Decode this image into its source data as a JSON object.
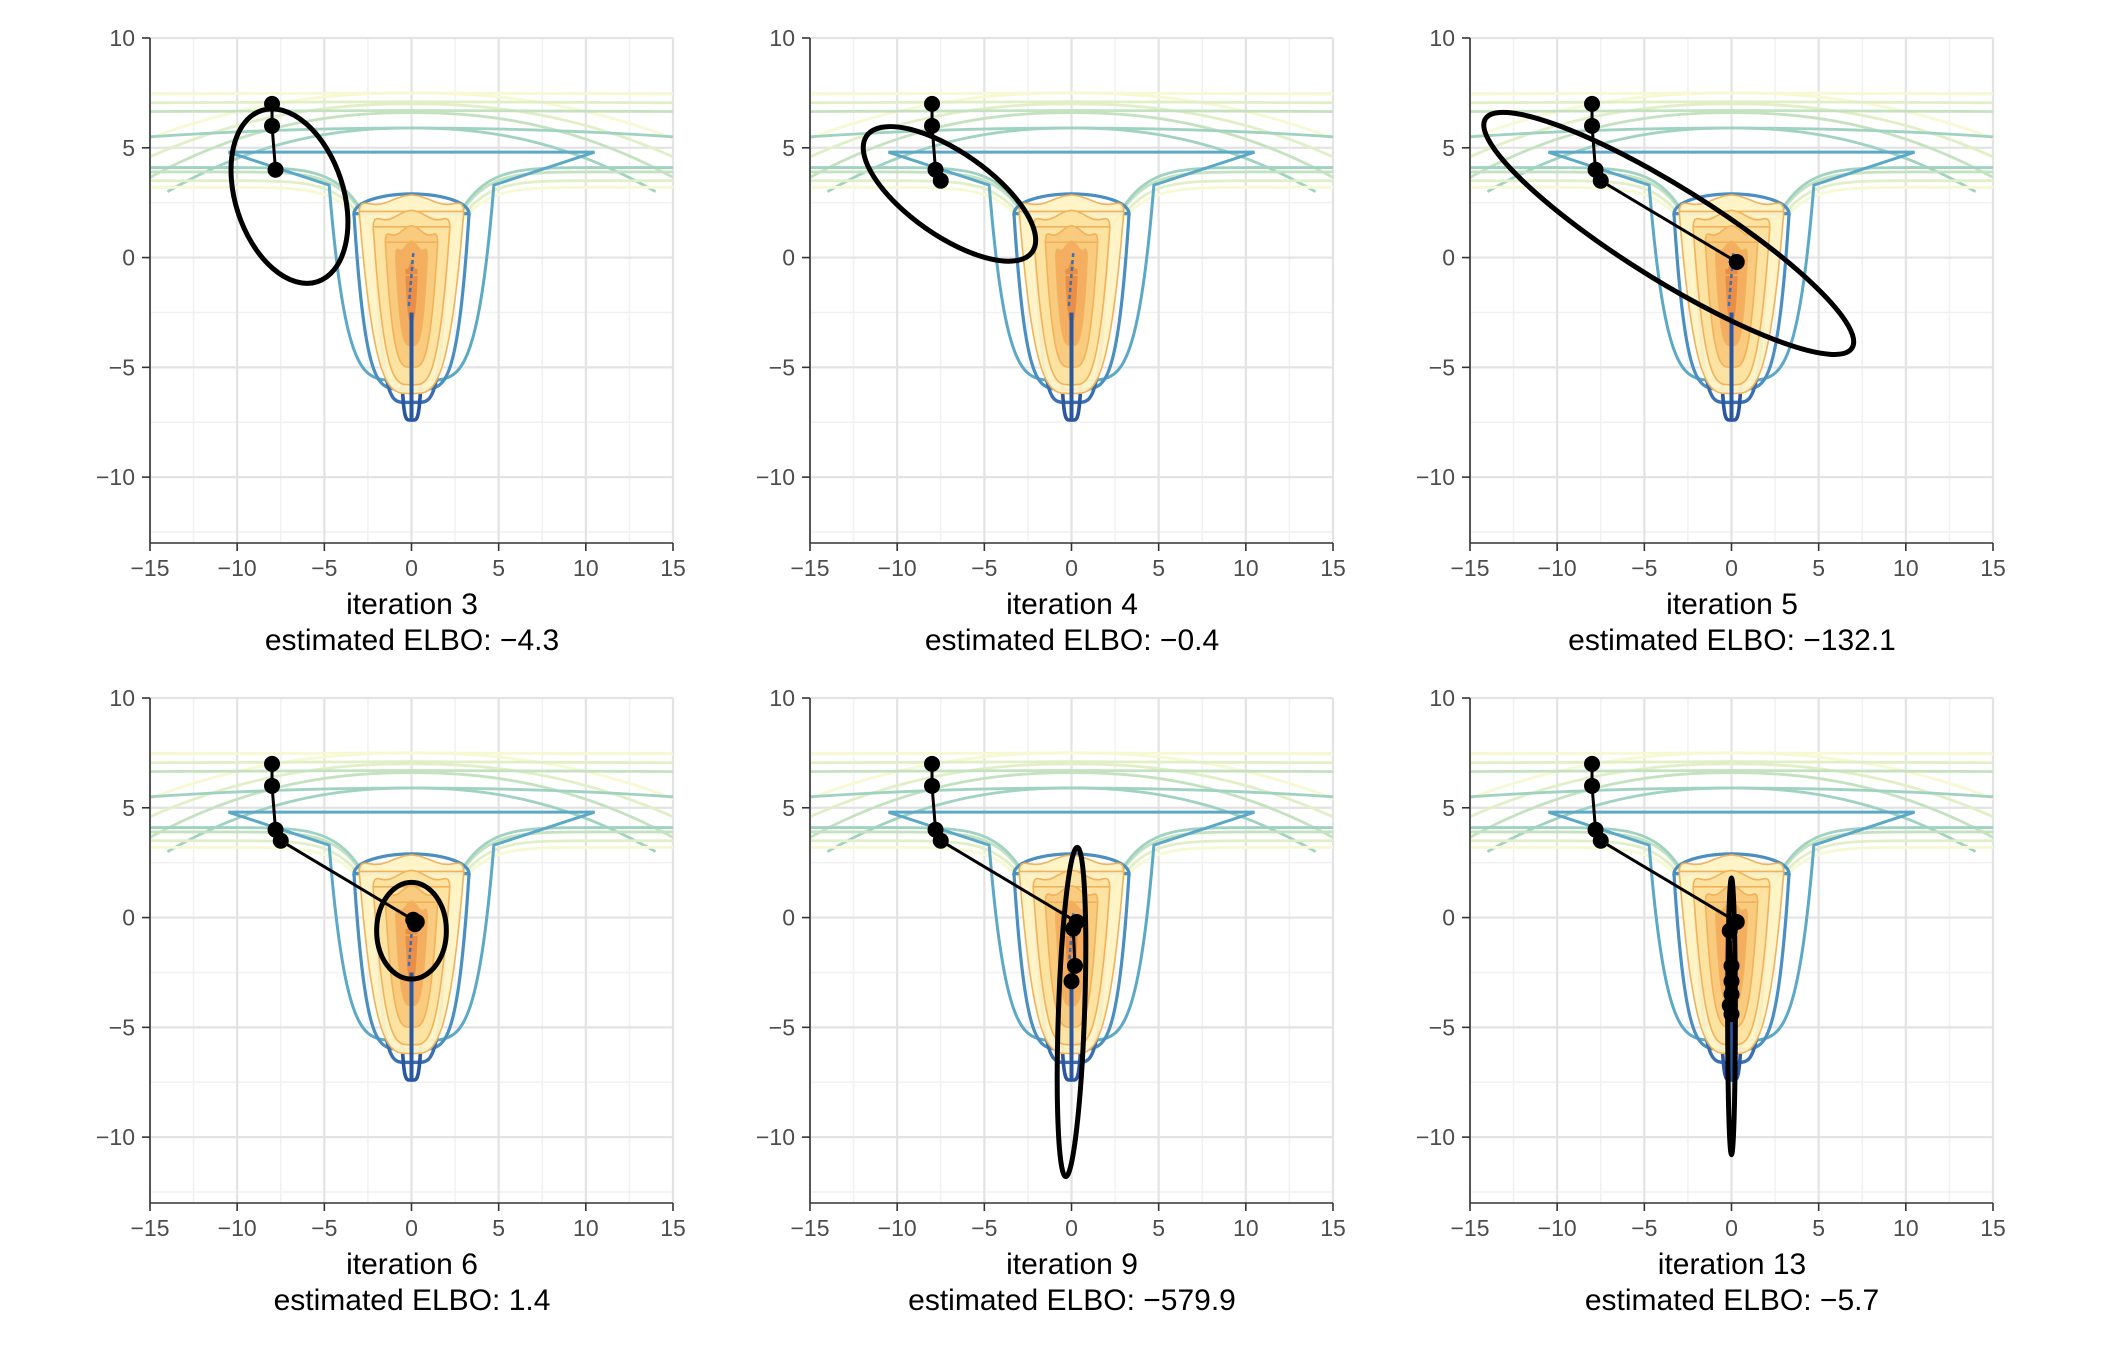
{
  "colors": {
    "grid_major": "#e3e3e3",
    "grid_minor": "#f1f1f1",
    "axis": "#333333",
    "path": "#000000",
    "contour_outer": [
      "#f6f9d2",
      "#e1efc6",
      "#c4e2c0",
      "#9fd2c1",
      "#7ec1c6",
      "#5ca8c7"
    ],
    "contour_inner": [
      "#4a8fc0",
      "#3a6fb0",
      "#2b56a0"
    ],
    "density_fill": [
      "#fff3c4",
      "#fde2a0",
      "#f9c97d",
      "#f3ab60",
      "#e98b47"
    ]
  },
  "chart_data": [
    {
      "type": "line",
      "title": "iteration 3",
      "subtitle": "estimated ELBO: −4.3",
      "xlim": [
        -15,
        15
      ],
      "ylim": [
        -13,
        10
      ],
      "xticks": [
        -15,
        -10,
        -5,
        0,
        5,
        10,
        15
      ],
      "yticks": [
        -10,
        -5,
        0,
        5,
        10
      ],
      "xtick_labels": [
        "−15",
        "−10",
        "−5",
        "0",
        "5",
        "10",
        "15"
      ],
      "ytick_labels": [
        "−10",
        "−5",
        "0",
        "5",
        "10"
      ],
      "grid": true,
      "path_points": [
        [
          -8,
          7
        ],
        [
          -8,
          6
        ],
        [
          -7.8,
          4
        ]
      ],
      "ellipse": {
        "center": [
          -7,
          2.8
        ],
        "rx": 3.1,
        "ry": 4.1,
        "angle_deg": -18
      }
    },
    {
      "type": "line",
      "title": "iteration 4",
      "subtitle": "estimated ELBO: −0.4",
      "xlim": [
        -15,
        15
      ],
      "ylim": [
        -13,
        10
      ],
      "xticks": [
        -15,
        -10,
        -5,
        0,
        5,
        10,
        15
      ],
      "yticks": [
        -10,
        -5,
        0,
        5,
        10
      ],
      "xtick_labels": [
        "−15",
        "−10",
        "−5",
        "0",
        "5",
        "10",
        "15"
      ],
      "ytick_labels": [
        "−10",
        "−5",
        "0",
        "5",
        "10"
      ],
      "grid": true,
      "path_points": [
        [
          -8,
          7
        ],
        [
          -8,
          6
        ],
        [
          -7.8,
          4
        ],
        [
          -7.5,
          3.5
        ]
      ],
      "ellipse": {
        "center": [
          -7,
          2.9
        ],
        "rx": 5.8,
        "ry": 1.9,
        "angle_deg": 35
      }
    },
    {
      "type": "line",
      "title": "iteration 5",
      "subtitle": "estimated ELBO: −132.1",
      "xlim": [
        -15,
        15
      ],
      "ylim": [
        -13,
        10
      ],
      "xticks": [
        -15,
        -10,
        -5,
        0,
        5,
        10,
        15
      ],
      "yticks": [
        -10,
        -5,
        0,
        5,
        10
      ],
      "xtick_labels": [
        "−15",
        "−10",
        "−5",
        "0",
        "5",
        "10",
        "15"
      ],
      "ytick_labels": [
        "−10",
        "−5",
        "0",
        "5",
        "10"
      ],
      "grid": true,
      "path_points": [
        [
          -8,
          7
        ],
        [
          -8,
          6
        ],
        [
          -7.8,
          4
        ],
        [
          -7.5,
          3.5
        ],
        [
          0.3,
          -0.2
        ]
      ],
      "ellipse": {
        "center": [
          -3.6,
          1.1
        ],
        "rx": 12.4,
        "ry": 2.1,
        "angle_deg": 32
      }
    },
    {
      "type": "line",
      "title": "iteration 6",
      "subtitle": "estimated ELBO: 1.4",
      "xlim": [
        -15,
        15
      ],
      "ylim": [
        -13,
        10
      ],
      "xticks": [
        -15,
        -10,
        -5,
        0,
        5,
        10,
        15
      ],
      "yticks": [
        -10,
        -5,
        0,
        5,
        10
      ],
      "xtick_labels": [
        "−15",
        "−10",
        "−5",
        "0",
        "5",
        "10",
        "15"
      ],
      "ytick_labels": [
        "−10",
        "−5",
        "0",
        "5",
        "10"
      ],
      "grid": true,
      "path_points": [
        [
          -8,
          7
        ],
        [
          -8,
          6
        ],
        [
          -7.8,
          4
        ],
        [
          -7.5,
          3.5
        ],
        [
          0.3,
          -0.2
        ],
        [
          0.1,
          -0.1
        ],
        [
          0.2,
          -0.3
        ]
      ],
      "ellipse": {
        "center": [
          0,
          -0.6
        ],
        "rx": 2.0,
        "ry": 2.2,
        "angle_deg": 0
      }
    },
    {
      "type": "line",
      "title": "iteration 9",
      "subtitle": "estimated ELBO: −579.9",
      "xlim": [
        -15,
        15
      ],
      "ylim": [
        -13,
        10
      ],
      "xticks": [
        -15,
        -10,
        -5,
        0,
        5,
        10,
        15
      ],
      "yticks": [
        -10,
        -5,
        0,
        5,
        10
      ],
      "xtick_labels": [
        "−15",
        "−10",
        "−5",
        "0",
        "5",
        "10",
        "15"
      ],
      "ytick_labels": [
        "−10",
        "−5",
        "0",
        "5",
        "10"
      ],
      "grid": true,
      "path_points": [
        [
          -8,
          7
        ],
        [
          -8,
          6
        ],
        [
          -7.8,
          4
        ],
        [
          -7.5,
          3.5
        ],
        [
          0.3,
          -0.2
        ],
        [
          0.1,
          -0.5
        ],
        [
          0.2,
          -2.2
        ],
        [
          0,
          -2.9
        ]
      ],
      "ellipse": {
        "center": [
          0,
          -4.3
        ],
        "rx": 0.75,
        "ry": 7.5,
        "angle_deg": 2
      }
    },
    {
      "type": "line",
      "title": "iteration 13",
      "subtitle": "estimated ELBO: −5.7",
      "xlim": [
        -15,
        15
      ],
      "ylim": [
        -13,
        10
      ],
      "xticks": [
        -15,
        -10,
        -5,
        0,
        5,
        10,
        15
      ],
      "yticks": [
        -10,
        -5,
        0,
        5,
        10
      ],
      "xtick_labels": [
        "−15",
        "−10",
        "−5",
        "0",
        "5",
        "10",
        "15"
      ],
      "ytick_labels": [
        "−10",
        "−5",
        "0",
        "5",
        "10"
      ],
      "grid": true,
      "path_points": [
        [
          -8,
          7
        ],
        [
          -8,
          6
        ],
        [
          -7.8,
          4
        ],
        [
          -7.5,
          3.5
        ],
        [
          0.3,
          -0.2
        ],
        [
          -0.1,
          -0.6
        ],
        [
          0,
          -2.2
        ],
        [
          0,
          -2.9
        ],
        [
          0,
          -3.5
        ],
        [
          -0.1,
          -4.0
        ],
        [
          0,
          -4.4
        ]
      ],
      "ellipse": {
        "center": [
          0,
          -4.5
        ],
        "rx": 0.22,
        "ry": 6.3,
        "angle_deg": 0
      }
    }
  ]
}
